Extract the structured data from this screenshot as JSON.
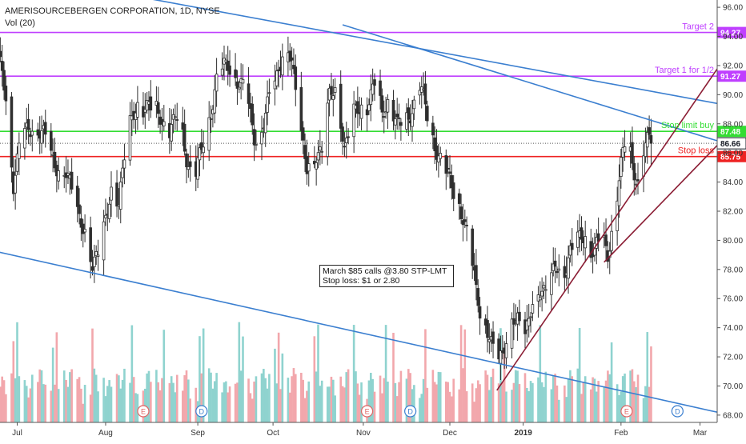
{
  "header": {
    "title": "AMERISOURCEBERGEN CORPORATION, 1D, NYSE",
    "volume_label": "Vol (20)"
  },
  "note": {
    "line1": "March $85 calls @3.80 STP-LMT",
    "line2": "Stop loss: $1 or 2.80"
  },
  "colors": {
    "up": "#2f2f2f",
    "down": "#2f2f2f",
    "vol_up": "#8fd3cf",
    "vol_down": "#f2a7ac",
    "target": "#bf3fff",
    "stop_buy": "#33dd33",
    "stop_loss": "#ee2222",
    "trend_blue": "#3b7fd0",
    "trend_red": "#8b1d34",
    "last": "#131722"
  },
  "chart_data": {
    "type": "candlestick",
    "ylim": [
      67.5,
      96.5
    ],
    "x_tick_labels": [
      "Jul",
      "Aug",
      "Sep",
      "Oct",
      "Nov",
      "Dec",
      "2019",
      "Feb",
      "Mar"
    ],
    "y_tick_labels": [
      "68.00",
      "70.00",
      "72.00",
      "74.00",
      "76.00",
      "78.00",
      "80.00",
      "82.00",
      "84.00",
      "86.00",
      "88.00",
      "90.00",
      "92.00",
      "94.00",
      "96.00"
    ],
    "y_ticks": [
      68,
      70,
      72,
      74,
      76,
      78,
      80,
      82,
      84,
      86,
      88,
      90,
      92,
      94,
      96
    ],
    "last_price": 86.66,
    "last_price_label": "86.66",
    "levels": [
      {
        "name": "Target 2",
        "value": 94.27,
        "value_label": "94.27",
        "color_key": "target"
      },
      {
        "name": "Target 1 for 1/2",
        "value": 91.27,
        "value_label": "91.27",
        "color_key": "target"
      },
      {
        "name": "Stop limit buy",
        "value": 87.48,
        "value_label": "87.48",
        "color_key": "stop_buy"
      },
      {
        "name": "Stop loss",
        "value": 85.75,
        "value_label": "85.75",
        "color_key": "stop_loss"
      }
    ],
    "events": [
      {
        "label": "E",
        "day": 77
      },
      {
        "label": "D",
        "day": 108
      },
      {
        "label": "E",
        "day": 196
      },
      {
        "label": "D",
        "day": 219
      },
      {
        "label": "E",
        "day": 334
      },
      {
        "label": "D",
        "day": 361
      }
    ],
    "trendlines": [
      {
        "color_key": "trend_blue",
        "from": [
          0,
          98.5
        ],
        "to": [
          403,
          88.9
        ]
      },
      {
        "color_key": "trend_blue",
        "from": [
          183,
          94.8
        ],
        "to": [
          403,
          86.0
        ]
      },
      {
        "color_key": "trend_blue",
        "from": [
          0,
          79.2
        ],
        "to": [
          403,
          67.6
        ]
      },
      {
        "color_key": "trend_red",
        "from": [
          265,
          69.7
        ],
        "to": [
          403,
          95.7
        ]
      },
      {
        "color_key": "trend_red",
        "from": [
          322,
          78.5
        ],
        "to": [
          403,
          89.3
        ]
      }
    ],
    "anchors": [
      [
        0,
        92.3
      ],
      [
        4,
        90.0
      ],
      [
        8,
        84.0
      ],
      [
        12,
        86.8
      ],
      [
        18,
        88.1
      ],
      [
        24,
        87.0
      ],
      [
        30,
        85.5
      ],
      [
        36,
        84.3
      ],
      [
        40,
        83.2
      ],
      [
        46,
        80.5
      ],
      [
        50,
        78.0
      ],
      [
        54,
        80.0
      ],
      [
        60,
        83.0
      ],
      [
        64,
        82.8
      ],
      [
        68,
        87.3
      ],
      [
        75,
        89.2
      ],
      [
        80,
        89.5
      ],
      [
        85,
        88.5
      ],
      [
        90,
        87.6
      ],
      [
        96,
        88.5
      ],
      [
        100,
        85.8
      ],
      [
        104,
        84.1
      ],
      [
        108,
        86.0
      ],
      [
        112,
        88.5
      ],
      [
        116,
        91.0
      ],
      [
        120,
        91.7
      ],
      [
        124,
        92.1
      ],
      [
        128,
        90.8
      ],
      [
        132,
        89.8
      ],
      [
        136,
        87.3
      ],
      [
        140,
        87.5
      ],
      [
        144,
        89.5
      ],
      [
        148,
        91.5
      ],
      [
        152,
        93.5
      ],
      [
        156,
        92.0
      ],
      [
        160,
        88.5
      ],
      [
        164,
        85.0
      ],
      [
        168,
        85.3
      ],
      [
        172,
        86.5
      ],
      [
        176,
        90.0
      ],
      [
        180,
        90.0
      ],
      [
        184,
        86.5
      ],
      [
        188,
        88.5
      ],
      [
        192,
        88.8
      ],
      [
        196,
        89.5
      ],
      [
        200,
        90.8
      ],
      [
        204,
        88.5
      ],
      [
        208,
        90.0
      ],
      [
        212,
        87.8
      ],
      [
        216,
        88.0
      ],
      [
        220,
        89.2
      ],
      [
        224,
        90.5
      ],
      [
        228,
        88.5
      ],
      [
        232,
        86.8
      ],
      [
        236,
        85.0
      ],
      [
        240,
        84.0
      ],
      [
        244,
        83.2
      ],
      [
        248,
        80.8
      ],
      [
        252,
        78.3
      ],
      [
        256,
        75.5
      ],
      [
        260,
        73.5
      ],
      [
        264,
        71.8
      ],
      [
        268,
        72.5
      ],
      [
        272,
        74.2
      ],
      [
        276,
        74.5
      ],
      [
        280,
        73.8
      ],
      [
        284,
        75.5
      ],
      [
        288,
        76.5
      ],
      [
        292,
        77.0
      ],
      [
        296,
        78.0
      ],
      [
        300,
        77.5
      ],
      [
        304,
        79.5
      ],
      [
        308,
        79.8
      ],
      [
        312,
        80.2
      ],
      [
        316,
        79.5
      ],
      [
        320,
        80.0
      ],
      [
        324,
        79.0
      ],
      [
        328,
        82.5
      ],
      [
        331,
        85.0
      ],
      [
        334,
        87.0
      ],
      [
        337,
        85.5
      ],
      [
        340,
        84.0
      ],
      [
        343,
        86.0
      ],
      [
        346,
        86.8
      ],
      [
        348,
        86.66
      ]
    ]
  }
}
